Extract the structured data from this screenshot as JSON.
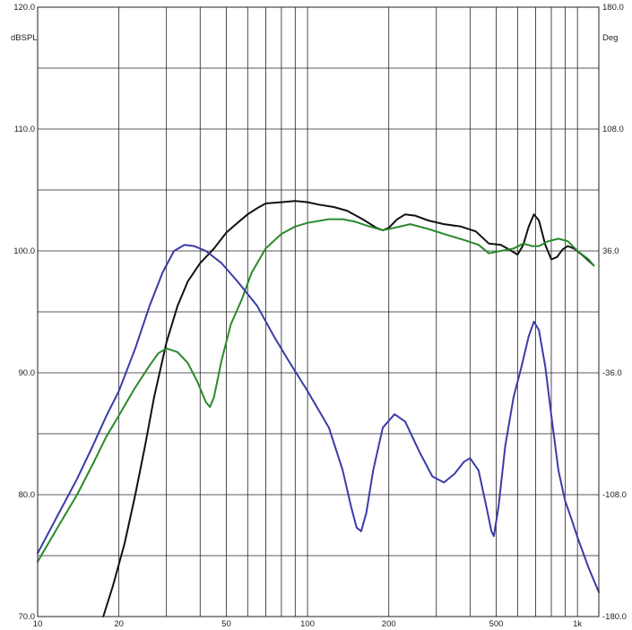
{
  "chart_data": {
    "type": "line",
    "title": "",
    "x_scale": "log",
    "xlim": [
      10,
      1200
    ],
    "ylim": [
      70,
      120
    ],
    "y2lim": [
      -180,
      180
    ],
    "x_tick_labels": [
      {
        "value": 10,
        "label": "10"
      },
      {
        "value": 20,
        "label": "20"
      },
      {
        "value": 50,
        "label": "50"
      },
      {
        "value": 100,
        "label": "100"
      },
      {
        "value": 200,
        "label": "200"
      },
      {
        "value": 500,
        "label": "500"
      },
      {
        "value": 1000,
        "label": "1k"
      }
    ],
    "y_tick_labels": [
      {
        "value": 70,
        "label": "70.0"
      },
      {
        "value": 80,
        "label": "80.0"
      },
      {
        "value": 90,
        "label": "90.0"
      },
      {
        "value": 100,
        "label": "100.0"
      },
      {
        "value": 110,
        "label": "110.0"
      },
      {
        "value": 120,
        "label": "120.0"
      }
    ],
    "y2_tick_labels": [
      {
        "value": -180,
        "label": "-180.0"
      },
      {
        "value": -108,
        "label": "-108.0"
      },
      {
        "value": -36,
        "label": "-36.0"
      },
      {
        "value": 36,
        "label": "36.0"
      },
      {
        "value": 108,
        "label": "108.0"
      },
      {
        "value": 180,
        "label": "180.0"
      }
    ],
    "ylabel": "dBSPL",
    "y2label": "Deg",
    "grid": true,
    "colors": {
      "grid": "#222222",
      "background": "#ffffff"
    },
    "series": [
      {
        "color": "#111111",
        "axis": "left",
        "points": [
          [
            17.5,
            70
          ],
          [
            19,
            72.5
          ],
          [
            21,
            76
          ],
          [
            23,
            80
          ],
          [
            25,
            84
          ],
          [
            27,
            88
          ],
          [
            30,
            92.5
          ],
          [
            33,
            95.5
          ],
          [
            36,
            97.5
          ],
          [
            40,
            99
          ],
          [
            45,
            100.2
          ],
          [
            50,
            101.5
          ],
          [
            55,
            102.3
          ],
          [
            60,
            103
          ],
          [
            65,
            103.5
          ],
          [
            70,
            103.9
          ],
          [
            80,
            104
          ],
          [
            90,
            104.1
          ],
          [
            100,
            104
          ],
          [
            110,
            103.8
          ],
          [
            125,
            103.6
          ],
          [
            140,
            103.3
          ],
          [
            160,
            102.6
          ],
          [
            180,
            101.9
          ],
          [
            190,
            101.7
          ],
          [
            200,
            101.9
          ],
          [
            215,
            102.6
          ],
          [
            230,
            103
          ],
          [
            250,
            102.9
          ],
          [
            280,
            102.5
          ],
          [
            320,
            102.2
          ],
          [
            370,
            102
          ],
          [
            420,
            101.6
          ],
          [
            470,
            100.6
          ],
          [
            520,
            100.5
          ],
          [
            560,
            100.1
          ],
          [
            600,
            99.7
          ],
          [
            630,
            100.5
          ],
          [
            660,
            102
          ],
          [
            690,
            103
          ],
          [
            720,
            102.5
          ],
          [
            760,
            100.5
          ],
          [
            800,
            99.3
          ],
          [
            840,
            99.5
          ],
          [
            880,
            100.1
          ],
          [
            920,
            100.4
          ],
          [
            970,
            100.2
          ],
          [
            1050,
            99.6
          ],
          [
            1150,
            98.8
          ]
        ]
      },
      {
        "color": "#2a8a2a",
        "axis": "left",
        "points": [
          [
            10,
            74.5
          ],
          [
            12,
            77.5
          ],
          [
            14,
            80
          ],
          [
            16,
            82.5
          ],
          [
            18,
            84.8
          ],
          [
            20,
            86.5
          ],
          [
            23,
            88.8
          ],
          [
            26,
            90.6
          ],
          [
            28,
            91.6
          ],
          [
            30,
            92
          ],
          [
            33,
            91.7
          ],
          [
            36,
            90.8
          ],
          [
            39,
            89.3
          ],
          [
            42,
            87.6
          ],
          [
            43.5,
            87.2
          ],
          [
            45,
            88
          ],
          [
            48,
            91
          ],
          [
            52,
            94
          ],
          [
            57,
            96
          ],
          [
            62,
            98.2
          ],
          [
            70,
            100.2
          ],
          [
            80,
            101.4
          ],
          [
            90,
            102
          ],
          [
            100,
            102.3
          ],
          [
            120,
            102.6
          ],
          [
            135,
            102.6
          ],
          [
            150,
            102.4
          ],
          [
            170,
            102
          ],
          [
            190,
            101.7
          ],
          [
            210,
            101.9
          ],
          [
            240,
            102.2
          ],
          [
            280,
            101.8
          ],
          [
            330,
            101.3
          ],
          [
            380,
            100.9
          ],
          [
            430,
            100.5
          ],
          [
            470,
            99.8
          ],
          [
            520,
            100
          ],
          [
            580,
            100.2
          ],
          [
            630,
            100.6
          ],
          [
            680,
            100.4
          ],
          [
            720,
            100.4
          ],
          [
            780,
            100.8
          ],
          [
            850,
            101
          ],
          [
            920,
            100.8
          ],
          [
            1000,
            100
          ],
          [
            1100,
            99.3
          ],
          [
            1150,
            98.8
          ]
        ]
      },
      {
        "color": "#3b3ba8",
        "axis": "left",
        "points": [
          [
            10,
            75.2
          ],
          [
            12,
            78.5
          ],
          [
            14,
            81.3
          ],
          [
            16,
            84
          ],
          [
            18,
            86.5
          ],
          [
            20,
            88.5
          ],
          [
            23,
            92
          ],
          [
            26,
            95.5
          ],
          [
            29,
            98.2
          ],
          [
            32,
            100
          ],
          [
            35,
            100.5
          ],
          [
            38,
            100.4
          ],
          [
            42,
            100
          ],
          [
            48,
            99
          ],
          [
            55,
            97.5
          ],
          [
            65,
            95.5
          ],
          [
            75,
            93
          ],
          [
            85,
            91
          ],
          [
            100,
            88.5
          ],
          [
            120,
            85.5
          ],
          [
            135,
            82
          ],
          [
            145,
            79
          ],
          [
            152,
            77.3
          ],
          [
            158,
            77
          ],
          [
            165,
            78.5
          ],
          [
            175,
            82
          ],
          [
            190,
            85.5
          ],
          [
            210,
            86.6
          ],
          [
            230,
            86
          ],
          [
            260,
            83.5
          ],
          [
            290,
            81.5
          ],
          [
            320,
            81
          ],
          [
            350,
            81.7
          ],
          [
            380,
            82.7
          ],
          [
            400,
            83
          ],
          [
            430,
            82
          ],
          [
            460,
            79
          ],
          [
            480,
            77
          ],
          [
            490,
            76.6
          ],
          [
            510,
            79
          ],
          [
            540,
            84
          ],
          [
            580,
            88
          ],
          [
            620,
            90.5
          ],
          [
            660,
            93
          ],
          [
            690,
            94.2
          ],
          [
            720,
            93.5
          ],
          [
            760,
            90.5
          ],
          [
            800,
            86.5
          ],
          [
            850,
            82
          ],
          [
            900,
            79.5
          ],
          [
            950,
            78
          ],
          [
            1000,
            76.5
          ],
          [
            1100,
            74
          ],
          [
            1200,
            72
          ]
        ]
      }
    ]
  }
}
